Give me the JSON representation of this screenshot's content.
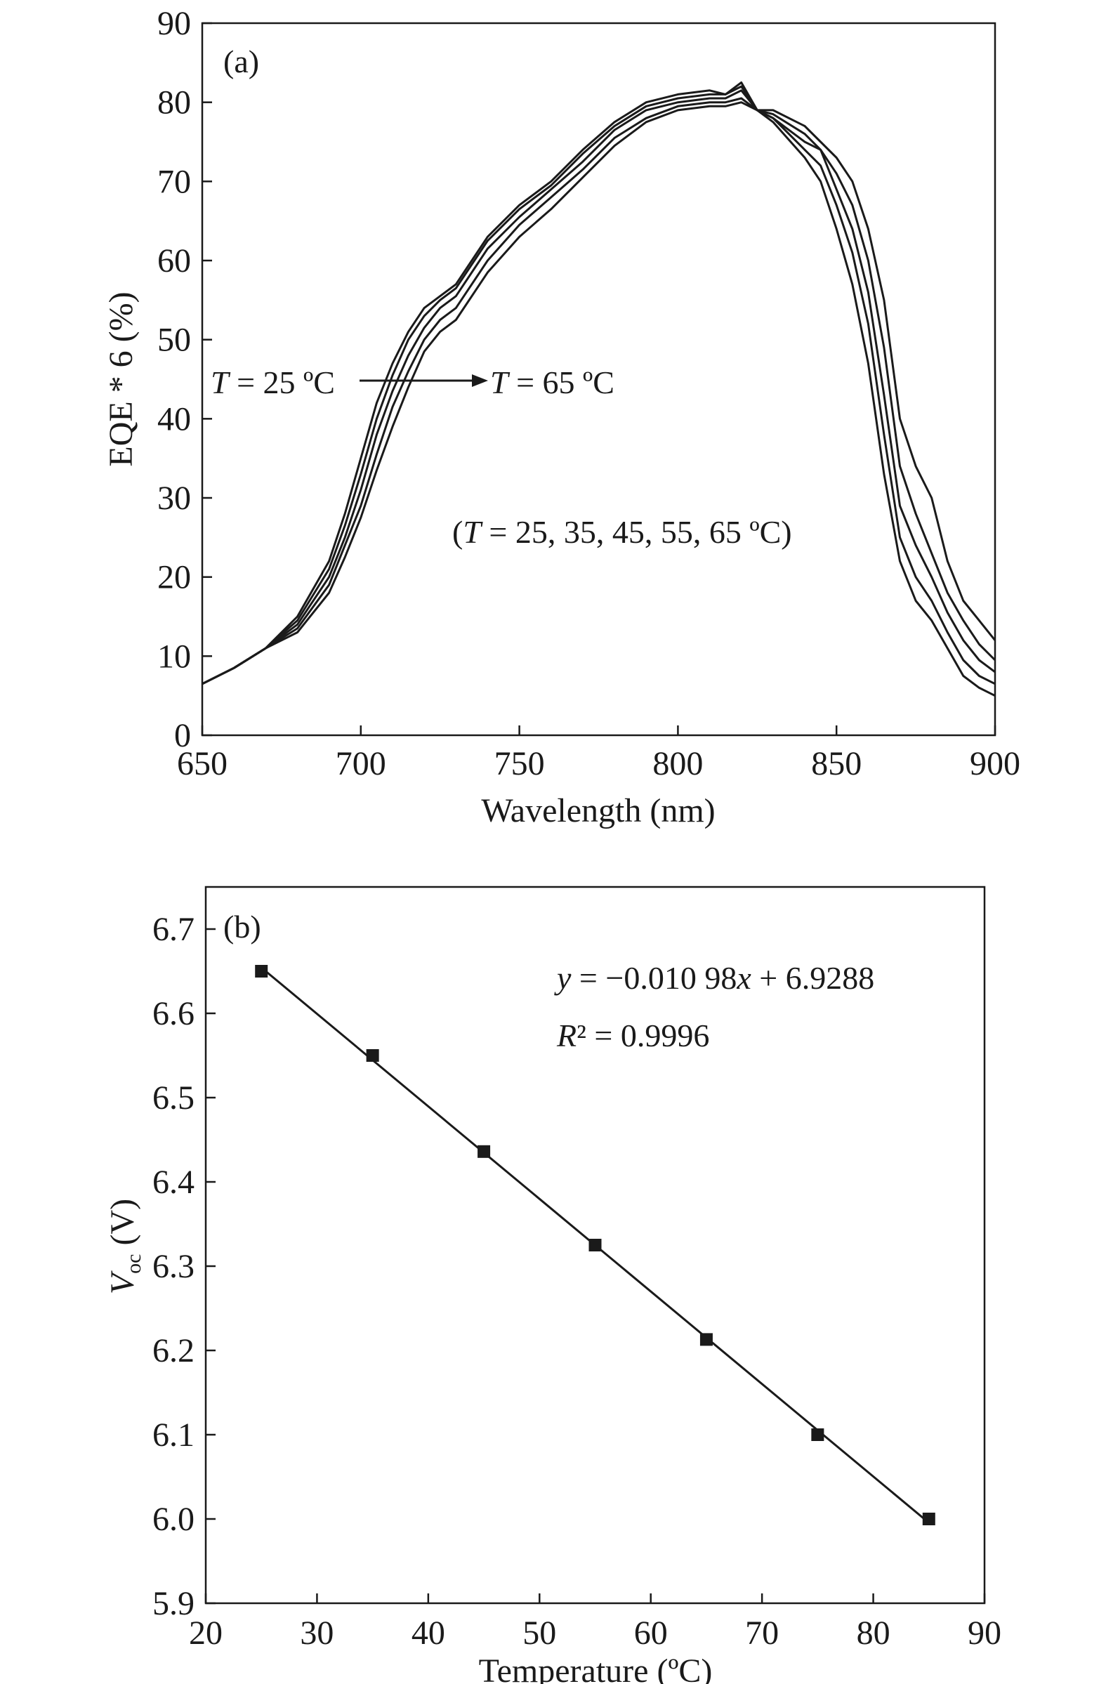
{
  "chart_data": [
    {
      "id": "a",
      "type": "line",
      "panel_label": "(a)",
      "xlabel": "Wavelength (nm)",
      "ylabel": "EQE * 6 (%)",
      "xlim": [
        650,
        900
      ],
      "ylim": [
        0,
        90
      ],
      "xticks": [
        650,
        700,
        750,
        800,
        850,
        900
      ],
      "yticks": [
        0,
        10,
        20,
        30,
        40,
        50,
        60,
        70,
        80,
        90
      ],
      "x": [
        650,
        660,
        670,
        680,
        690,
        695,
        700,
        705,
        710,
        715,
        720,
        725,
        730,
        740,
        750,
        760,
        770,
        780,
        790,
        800,
        810,
        815,
        820,
        825,
        830,
        840,
        845,
        850,
        855,
        860,
        865,
        870,
        875,
        880,
        885,
        890,
        895,
        900
      ],
      "series": [
        {
          "name": "T = 25 ºC",
          "values": [
            6.5,
            8.5,
            11,
            15,
            22,
            28,
            35,
            42,
            47,
            51,
            54,
            55.5,
            57,
            63,
            67,
            70,
            74,
            77.5,
            80,
            81,
            81.5,
            81,
            82,
            79,
            77.5,
            73,
            70,
            64,
            57,
            47,
            33,
            22,
            17,
            14.5,
            11,
            7.5,
            6,
            5
          ]
        },
        {
          "name": "T = 35 ºC",
          "values": [
            6.5,
            8.5,
            11,
            14.5,
            21,
            26.5,
            33,
            40,
            45.5,
            50,
            53,
            55,
            56.5,
            62.5,
            66.5,
            69.5,
            73.5,
            77,
            79.5,
            80.5,
            81,
            81,
            82.5,
            79,
            78,
            74,
            72,
            67,
            61,
            52,
            38,
            25,
            20,
            17,
            13,
            9.5,
            7.5,
            6.5
          ]
        },
        {
          "name": "T = 45 ºC",
          "values": [
            6.5,
            8.5,
            11,
            14,
            20,
            25,
            31,
            38,
            43.5,
            48,
            51.5,
            54,
            55.5,
            61.5,
            65.5,
            69,
            72.5,
            76.5,
            79,
            80,
            80.5,
            80.5,
            81.5,
            79,
            78,
            75,
            74,
            69,
            64,
            56,
            43,
            29,
            24,
            20,
            15.5,
            12,
            9.5,
            8
          ]
        },
        {
          "name": "T = 55 ºC",
          "values": [
            6.5,
            8.5,
            11,
            13.5,
            19,
            24,
            29,
            35.5,
            41.5,
            46,
            50,
            52.5,
            54,
            60,
            64.5,
            68,
            71.5,
            75.5,
            78,
            79.5,
            80,
            80,
            80.5,
            79,
            78.5,
            76,
            74,
            71,
            67,
            60,
            49,
            34,
            28,
            23,
            18,
            14.5,
            11.5,
            9.5
          ]
        },
        {
          "name": "T = 65 ºC",
          "values": [
            6.5,
            8.5,
            11,
            13,
            18,
            22.5,
            27.5,
            33.5,
            39,
            44,
            48.5,
            51,
            52.5,
            58.5,
            63,
            66.5,
            70.5,
            74.5,
            77.5,
            79,
            79.5,
            79.5,
            80,
            79,
            79,
            77,
            75,
            73,
            70,
            64,
            55,
            40,
            34,
            30,
            22,
            17,
            14.5,
            12
          ]
        }
      ],
      "annotations": {
        "arrow_start": "T = 25 ºC",
        "arrow_end": "T = 65 ºC",
        "temperature_list": "(T = 25, 35, 45, 55, 65 ºC)"
      }
    },
    {
      "id": "b",
      "type": "scatter",
      "panel_label": "(b)",
      "xlabel": "Temperature (ºC)",
      "ylabel": "V_oc (V)",
      "ylabel_main": "V",
      "ylabel_sub": "oc",
      "ylabel_unit": " (V)",
      "xlim": [
        20,
        90
      ],
      "ylim": [
        5.9,
        6.75
      ],
      "xticks": [
        20,
        30,
        40,
        50,
        60,
        70,
        80,
        90
      ],
      "yticks": [
        5.9,
        6.0,
        6.1,
        6.2,
        6.3,
        6.4,
        6.5,
        6.6,
        6.7
      ],
      "x": [
        25,
        35,
        45,
        55,
        65,
        75,
        85
      ],
      "y": [
        6.65,
        6.55,
        6.436,
        6.325,
        6.213,
        6.1,
        6.0
      ],
      "fit": {
        "slope": -0.01098,
        "intercept": 6.9288,
        "r2": 0.9996
      },
      "equation_text": "y = −0.010 98x + 6.9288",
      "r2_text": "R² = 0.9996"
    }
  ]
}
